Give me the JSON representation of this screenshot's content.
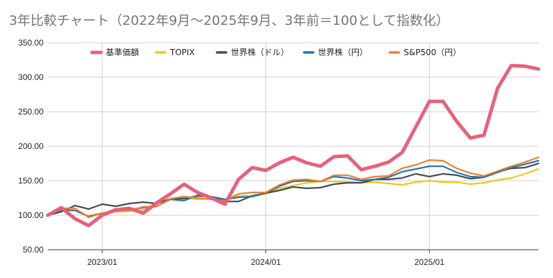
{
  "chart_data": {
    "type": "line",
    "title": "3年比較チャート（2022年9月〜2025年9月、3年前＝100として指数化）",
    "xlabel": "",
    "ylabel": "",
    "ylim": [
      50,
      350
    ],
    "yticks": [
      50,
      100,
      150,
      200,
      250,
      300,
      350
    ],
    "ytick_labels": [
      "50.00",
      "100.00",
      "150.00",
      "200.00",
      "250.00",
      "300.00",
      "350.00"
    ],
    "xtick_labels": [
      "2023/01",
      "2024/01",
      "2025/01"
    ],
    "xtick_index": [
      4,
      16,
      28
    ],
    "x": [
      "2022/09",
      "2022/10",
      "2022/11",
      "2022/12",
      "2023/01",
      "2023/02",
      "2023/03",
      "2023/04",
      "2023/05",
      "2023/06",
      "2023/07",
      "2023/08",
      "2023/09",
      "2023/10",
      "2023/11",
      "2023/12",
      "2024/01",
      "2024/02",
      "2024/03",
      "2024/04",
      "2024/05",
      "2024/06",
      "2024/07",
      "2024/08",
      "2024/09",
      "2024/10",
      "2024/11",
      "2024/12",
      "2025/01",
      "2025/02",
      "2025/03",
      "2025/04",
      "2025/05",
      "2025/06",
      "2025/07",
      "2025/08",
      "2025/09"
    ],
    "grid": true,
    "legend": "top",
    "series": [
      {
        "name": "基準価額",
        "color": "#e8607a",
        "values": [
          100,
          111,
          95,
          85,
          100,
          108,
          110,
          103,
          118,
          131,
          145,
          133,
          125,
          116,
          152,
          169,
          165,
          176,
          184,
          176,
          171,
          185,
          186,
          166,
          171,
          177,
          191,
          228,
          265,
          265,
          236,
          212,
          216,
          284,
          317,
          316,
          312
        ]
      },
      {
        "name": "TOPIX",
        "color": "#f5c518",
        "values": [
          100,
          106,
          107,
          99,
          103,
          105,
          106,
          108,
          113,
          123,
          125,
          123,
          124,
          121,
          128,
          128,
          131,
          139,
          143,
          147,
          149,
          149,
          148,
          147,
          148,
          146,
          144,
          148,
          150,
          148,
          148,
          145,
          147,
          151,
          154,
          160,
          167
        ]
      },
      {
        "name": "世界株（ドル）",
        "color": "#434a54",
        "values": [
          100,
          105,
          114,
          109,
          116,
          113,
          117,
          119,
          117,
          124,
          124,
          128,
          127,
          120,
          120,
          128,
          132,
          136,
          141,
          139,
          140,
          145,
          147,
          147,
          152,
          152,
          154,
          160,
          156,
          160,
          158,
          153,
          155,
          163,
          168,
          169,
          175
        ]
      },
      {
        "name": "世界株（円）",
        "color": "#1f78b4",
        "values": [
          100,
          108,
          107,
          98,
          103,
          106,
          108,
          111,
          113,
          123,
          121,
          129,
          127,
          123,
          126,
          127,
          132,
          142,
          149,
          150,
          149,
          156,
          154,
          150,
          152,
          155,
          163,
          167,
          171,
          171,
          162,
          156,
          155,
          162,
          169,
          174,
          179
        ]
      },
      {
        "name": "S&P500（円）",
        "color": "#f37e25",
        "values": [
          100,
          110,
          110,
          97,
          103,
          106,
          107,
          112,
          113,
          124,
          127,
          125,
          123,
          121,
          131,
          133,
          133,
          144,
          151,
          152,
          149,
          158,
          158,
          152,
          156,
          157,
          168,
          173,
          180,
          179,
          168,
          161,
          157,
          164,
          171,
          177,
          184
        ]
      }
    ]
  }
}
